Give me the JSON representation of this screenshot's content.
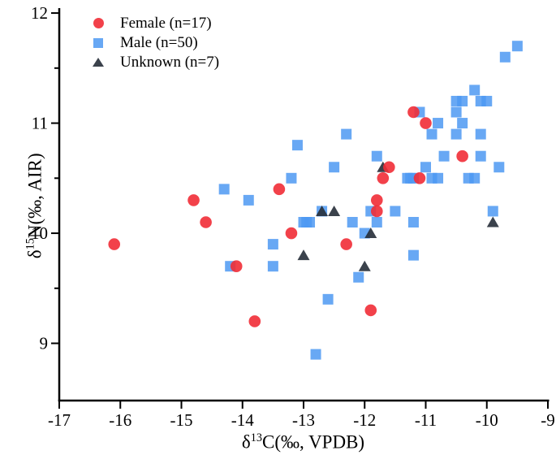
{
  "chart_data": {
    "type": "scatter",
    "title": "",
    "xlabel": {
      "delta": "δ",
      "sup": "13",
      "rest": "C(‰, VPDB)"
    },
    "ylabel": {
      "delta": "δ",
      "sup": "15",
      "rest": "N(‰, AIR)"
    },
    "xlim": [
      -17,
      -9
    ],
    "ylim": [
      8.48,
      12.03
    ],
    "x_major_ticks": [
      -17,
      -16,
      -15,
      -14,
      -13,
      -12,
      -11,
      -10,
      -9
    ],
    "y_major_ticks": [
      9,
      10,
      11,
      12
    ],
    "y_minor_ticks": [
      9.5,
      10.5,
      11.5
    ],
    "grid": false,
    "legend_position": "inside-top-left",
    "series": [
      {
        "name": "male",
        "label": "Male (n=50)",
        "marker": "square",
        "color": "#4D99F2",
        "opacity": 0.85,
        "points": [
          [
            -13.1,
            10.8
          ],
          [
            -13.2,
            10.5
          ],
          [
            -14.3,
            10.4
          ],
          [
            -13.9,
            10.3
          ],
          [
            -9.5,
            11.7
          ],
          [
            -9.7,
            11.6
          ],
          [
            -10.2,
            11.3
          ],
          [
            -10.5,
            11.2
          ],
          [
            -10.4,
            11.2
          ],
          [
            -10.1,
            11.2
          ],
          [
            -10.0,
            11.2
          ],
          [
            -10.5,
            11.1
          ],
          [
            -11.1,
            11.1
          ],
          [
            -10.8,
            11.0
          ],
          [
            -10.4,
            11.0
          ],
          [
            -10.9,
            10.9
          ],
          [
            -10.5,
            10.9
          ],
          [
            -10.1,
            10.9
          ],
          [
            -12.3,
            10.9
          ],
          [
            -11.8,
            10.7
          ],
          [
            -10.7,
            10.7
          ],
          [
            -10.1,
            10.7
          ],
          [
            -12.5,
            10.6
          ],
          [
            -9.8,
            10.6
          ],
          [
            -11.0,
            10.6
          ],
          [
            -11.3,
            10.5
          ],
          [
            -11.25,
            10.5
          ],
          [
            -11.2,
            10.5
          ],
          [
            -10.9,
            10.5
          ],
          [
            -10.8,
            10.5
          ],
          [
            -10.3,
            10.5
          ],
          [
            -10.2,
            10.5
          ],
          [
            -13.5,
            9.9
          ],
          [
            -14.2,
            9.7
          ],
          [
            -13.5,
            9.7
          ],
          [
            -13.0,
            10.1
          ],
          [
            -12.95,
            10.1
          ],
          [
            -12.9,
            10.1
          ],
          [
            -11.9,
            10.2
          ],
          [
            -11.5,
            10.2
          ],
          [
            -12.7,
            10.2
          ],
          [
            -9.9,
            10.2
          ],
          [
            -12.2,
            10.1
          ],
          [
            -11.8,
            10.1
          ],
          [
            -11.2,
            10.1
          ],
          [
            -12.0,
            10.0
          ],
          [
            -11.2,
            9.8
          ],
          [
            -12.1,
            9.6
          ],
          [
            -12.6,
            9.4
          ],
          [
            -12.8,
            8.9
          ]
        ]
      },
      {
        "name": "unknown",
        "label": "Unknown (n=7)",
        "marker": "triangle",
        "color": "#262E38",
        "opacity": 0.9,
        "points": [
          [
            -12.7,
            10.2
          ],
          [
            -12.5,
            10.2
          ],
          [
            -11.9,
            10.0
          ],
          [
            -13.0,
            9.8
          ],
          [
            -12.0,
            9.7
          ],
          [
            -9.9,
            10.1
          ],
          [
            -11.7,
            10.6
          ]
        ]
      },
      {
        "name": "female",
        "label": "Female (n=17)",
        "marker": "circle",
        "color": "#F12C36",
        "opacity": 0.9,
        "points": [
          [
            -13.4,
            10.4
          ],
          [
            -14.8,
            10.3
          ],
          [
            -11.2,
            11.1
          ],
          [
            -11.0,
            11.0
          ],
          [
            -10.4,
            10.7
          ],
          [
            -11.6,
            10.6
          ],
          [
            -11.7,
            10.5
          ],
          [
            -11.1,
            10.5
          ],
          [
            -14.6,
            10.1
          ],
          [
            -16.1,
            9.9
          ],
          [
            -13.2,
            10.0
          ],
          [
            -14.1,
            9.7
          ],
          [
            -13.8,
            9.2
          ],
          [
            -11.8,
            10.2
          ],
          [
            -12.3,
            9.9
          ],
          [
            -11.9,
            9.3
          ],
          [
            -11.8,
            10.3
          ]
        ]
      }
    ],
    "legend_order": [
      "female",
      "male",
      "unknown"
    ],
    "axis_color": "#000000"
  }
}
